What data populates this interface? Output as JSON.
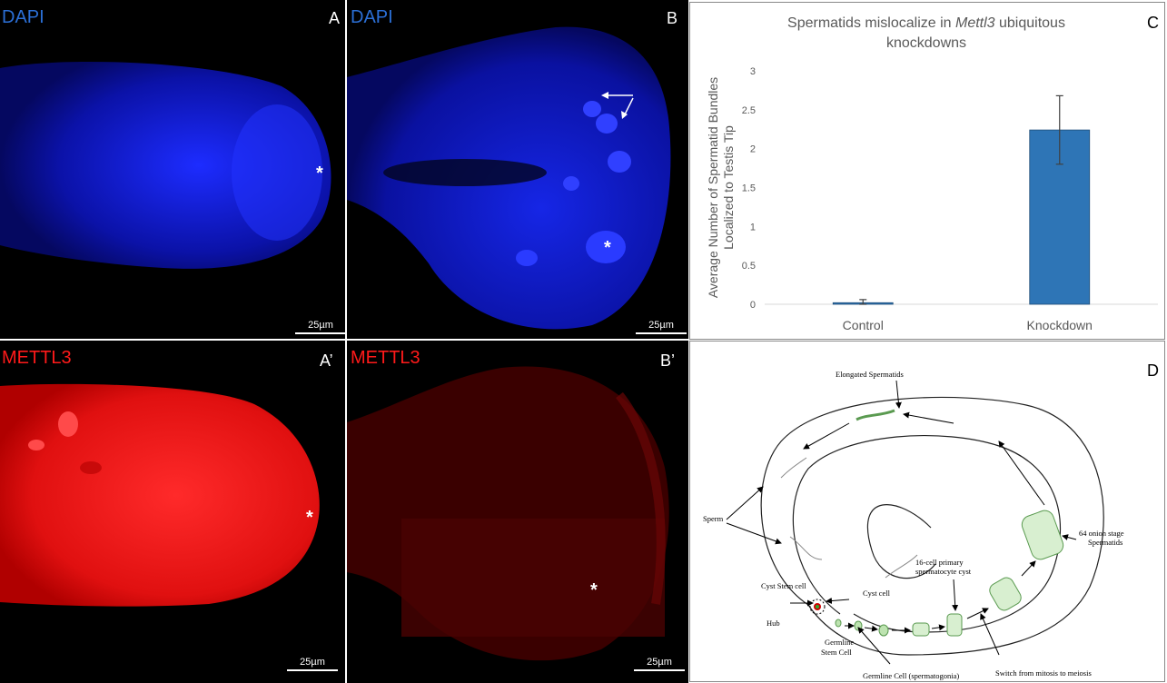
{
  "panel_a": {
    "letter": "A",
    "stain": "DAPI",
    "scale_label": "25µm",
    "marker": "*"
  },
  "panel_b": {
    "letter": "B",
    "stain": "DAPI",
    "scale_label": "25µm",
    "marker": "*"
  },
  "panel_a2": {
    "letter": "A’",
    "stain": "METTL3",
    "scale_label": "25µm",
    "marker": "*"
  },
  "panel_b2": {
    "letter": "B’",
    "stain": "METTL3",
    "scale_label": "25µm",
    "marker": "*"
  },
  "panel_c": {
    "letter": "C"
  },
  "panel_d": {
    "letter": "D"
  },
  "colors": {
    "dapi": "#2b6fd6",
    "mettl3": "#ff1a1a",
    "bar": "#2e75b6",
    "error": "#404040"
  },
  "chart_data": {
    "type": "bar",
    "title_parts": [
      "Spermatids mislocalize in ",
      "Mettl3",
      " ubiquitous",
      "knockdowns"
    ],
    "ylabel_lines": [
      "Average Number of Spermatid Bundles",
      "Localized to Testis Tip"
    ],
    "xlabel": "",
    "categories": [
      "Control",
      "Knockdown"
    ],
    "values": [
      0.02,
      2.24
    ],
    "errors": [
      0.04,
      0.44
    ],
    "ylim": [
      0,
      3
    ],
    "yticks": [
      0,
      0.5,
      1,
      1.5,
      2,
      2.5,
      3
    ],
    "ytick_labels": [
      "0",
      "0.5",
      "1",
      "1.5",
      "2",
      "2.5",
      "3"
    ],
    "grid": false
  },
  "diagram": {
    "labels": {
      "elongated": "Elongated Spermatids",
      "sperm": "Sperm",
      "onion_1": "64 onion stage",
      "onion_2": "Spermatids",
      "cyst16_1": "16-cell primary",
      "cyst16_2": "spermatocyte cyst",
      "cyst_stem": "Cyst Stem cell",
      "cyst_cell": "Cyst cell",
      "hub": "Hub",
      "gsc_1": "Germline",
      "gsc_2": "Stem Cell",
      "gonia": "Germline Cell (spermatogonia)",
      "switch": "Switch from mitosis to meiosis"
    }
  }
}
